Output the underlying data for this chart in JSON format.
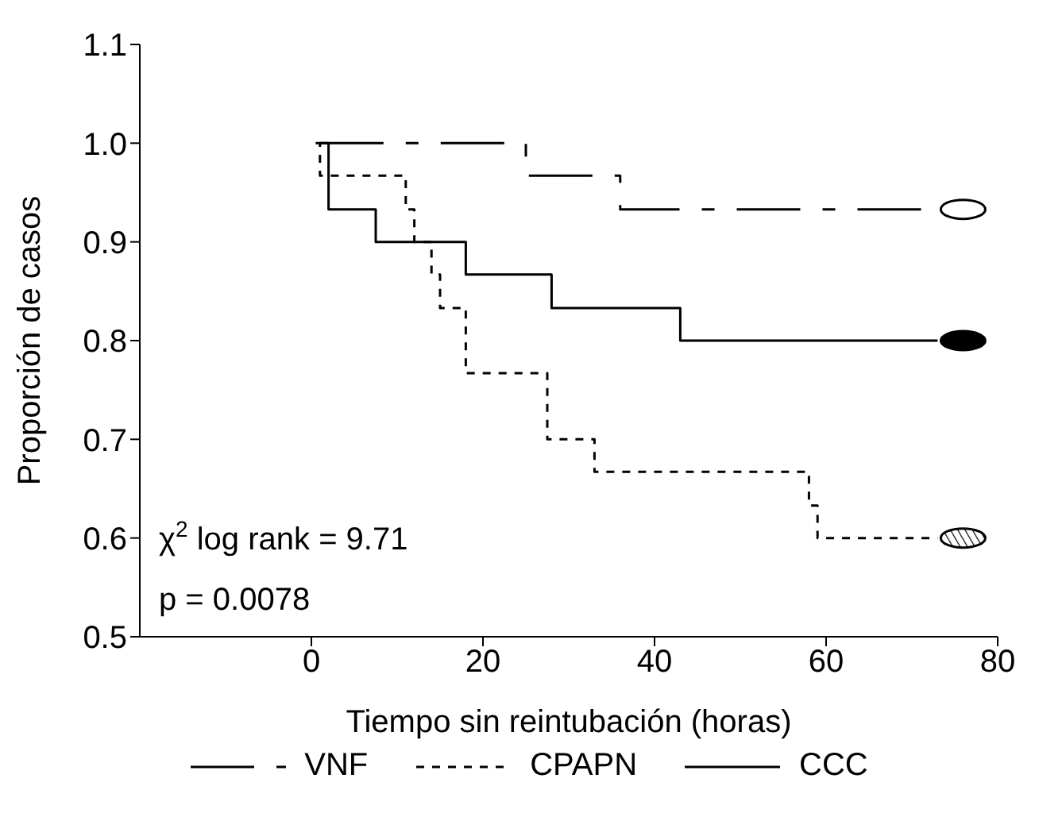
{
  "chart_data": {
    "type": "step",
    "xlabel": "Tiempo sin reintubación (horas)",
    "ylabel": "Proporción de casos",
    "xlim": [
      -20,
      80
    ],
    "xticks": [
      0,
      20,
      40,
      60,
      80
    ],
    "ylim": [
      0.5,
      1.1
    ],
    "yticks": [
      0.5,
      0.6,
      0.7,
      0.8,
      0.9,
      {
        "value": 1,
        "label": "1.0"
      },
      1.1
    ],
    "grid": false,
    "legend": "bottom",
    "annotations": [
      "χ$^{2}$ log rank = 9.71",
      "p = 0.0078"
    ],
    "series": [
      {
        "name": "VNF",
        "color": "#000000",
        "line_style": "dashed",
        "x": [
          1,
          25,
          25,
          36,
          36,
          73
        ],
        "values": [
          1.0,
          1.0,
          0.967,
          0.967,
          0.933,
          0.933
        ]
      },
      {
        "name": "CPAPN",
        "color": "#000000",
        "line_style": "dotted",
        "x": [
          0.5,
          1,
          11,
          12,
          14,
          15,
          18,
          27.5,
          33,
          58,
          59,
          73
        ],
        "values": [
          1.0,
          0.967,
          0.933,
          0.9,
          0.867,
          0.833,
          0.767,
          0.7,
          0.667,
          0.633,
          0.6,
          0.6
        ]
      },
      {
        "name": "CCC",
        "color": "#000000",
        "line_style": "solid",
        "x": [
          1,
          2,
          7.5,
          18,
          28,
          43,
          73
        ],
        "values": [
          1.0,
          0.933,
          0.9,
          0.867,
          0.833,
          0.8,
          0.8
        ]
      }
    ]
  }
}
